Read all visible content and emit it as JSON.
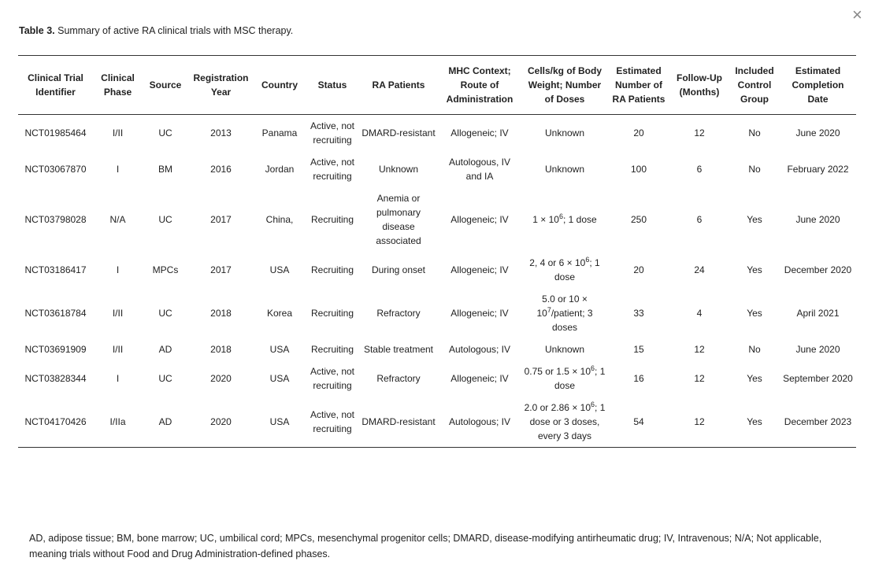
{
  "caption": {
    "label": "Table 3.",
    "text": "Summary of active RA clinical trials with MSC therapy."
  },
  "close": "×",
  "table": {
    "header": [
      "Clinical Trial Identifier",
      "Clinical Phase",
      "Source",
      "Registration Year",
      "Country",
      "Status",
      "RA Patients",
      "MHC Context; Route of Administration",
      "Cells/kg of Body Weight; Number of Doses",
      "Estimated Number of RA Patients",
      "Follow-Up (Months)",
      "Included Control Group",
      "Estimated Completion Date"
    ],
    "rows": [
      [
        "NCT01985464",
        "I/II",
        "UC",
        "2013",
        "Panama",
        "Active, not recruiting",
        "DMARD-resistant",
        "Allogeneic; IV",
        "Unknown",
        "20",
        "12",
        "No",
        "June 2020"
      ],
      [
        "NCT03067870",
        "I",
        "BM",
        "2016",
        "Jordan",
        "Active, not recruiting",
        "Unknown",
        "Autologous, IV and IA",
        "Unknown",
        "100",
        "6",
        "No",
        "February 2022"
      ],
      [
        "NCT03798028",
        "N/A",
        "UC",
        "2017",
        "China,",
        "Recruiting",
        "Anemia or pulmonary disease associated",
        "Allogeneic; IV",
        {
          "parts": [
            "1 × 10",
            "6",
            "; 1 dose"
          ]
        },
        "250",
        "6",
        "Yes",
        "June 2020"
      ],
      [
        "NCT03186417",
        "I",
        "MPCs",
        "2017",
        "USA",
        "Recruiting",
        "During onset",
        "Allogeneic; IV",
        {
          "parts": [
            "2, 4 or 6 × 10",
            "6",
            "; 1 dose"
          ]
        },
        "20",
        "24",
        "Yes",
        "December 2020"
      ],
      [
        "NCT03618784",
        "I/II",
        "UC",
        "2018",
        "Korea",
        "Recruiting",
        "Refractory",
        "Allogeneic; IV",
        {
          "parts": [
            "5.0 or 10 × 10",
            "7",
            "/patient; 3 doses"
          ]
        },
        "33",
        "4",
        "Yes",
        "April 2021"
      ],
      [
        "NCT03691909",
        "I/II",
        "AD",
        "2018",
        "USA",
        "Recruiting",
        "Stable treatment",
        "Autologous; IV",
        "Unknown",
        "15",
        "12",
        "No",
        "June 2020"
      ],
      [
        "NCT03828344",
        "I",
        "UC",
        "2020",
        "USA",
        "Active, not recruiting",
        "Refractory",
        "Allogeneic; IV",
        {
          "parts": [
            "0.75 or 1.5 × 10",
            "6",
            "; 1 dose"
          ]
        },
        "16",
        "12",
        "Yes",
        "September 2020"
      ],
      [
        "NCT04170426",
        "I/IIa",
        "AD",
        "2020",
        "USA",
        "Active, not recruiting",
        "DMARD-resistant",
        "Autologous; IV",
        {
          "parts": [
            "2.0 or 2.86 × 10",
            "6",
            "; 1 dose or 3 doses, every 3 days"
          ]
        },
        "54",
        "12",
        "Yes",
        "December 2023"
      ]
    ]
  },
  "footnote": "AD, adipose tissue; BM, bone marrow; UC, umbilical cord; MPCs, mesenchymal progenitor cells; DMARD, disease-modifying antirheumatic drug; IV, Intravenous; N/A; Not applicable, meaning trials without Food and Drug Administration-defined phases."
}
